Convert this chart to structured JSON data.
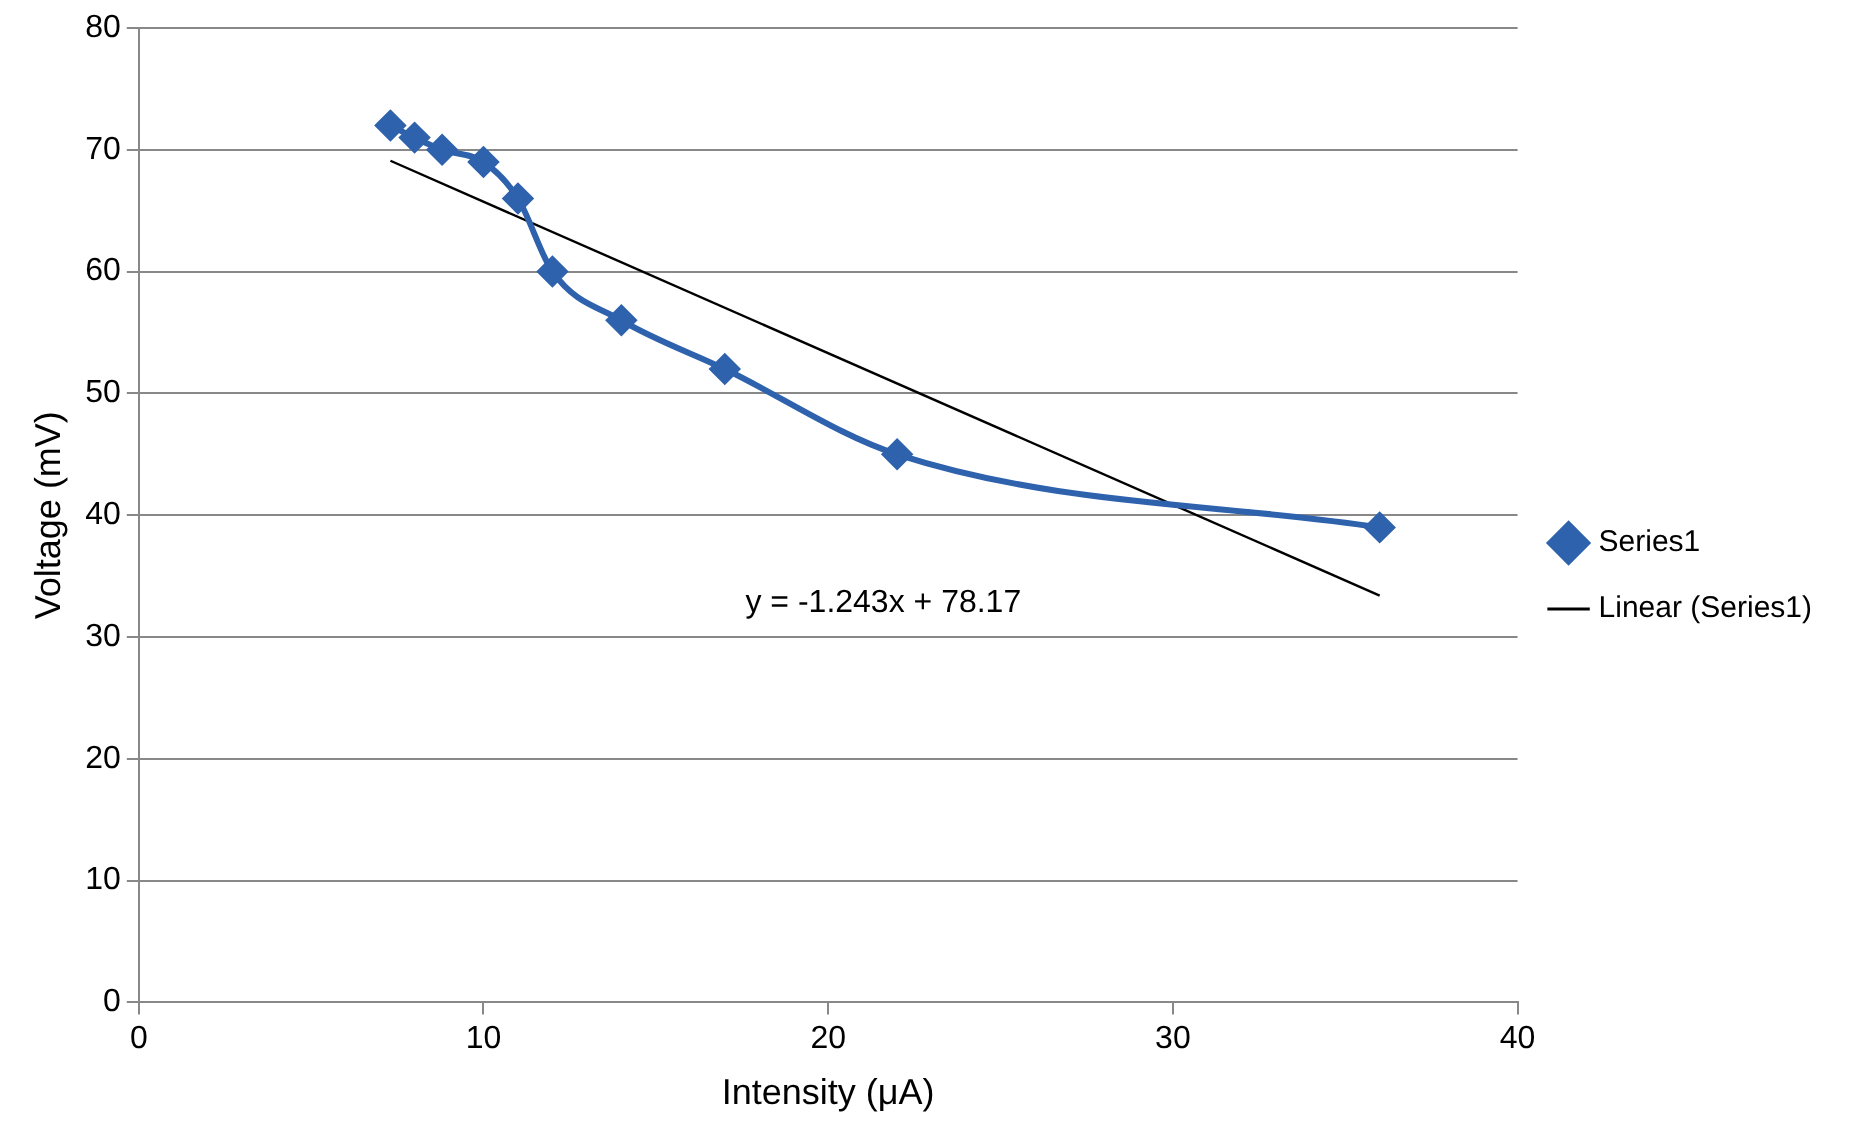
{
  "chart_data": {
    "type": "scatter",
    "xlabel": "Intensity (μA)",
    "ylabel": "Voltage (mV)",
    "xlim": [
      0,
      40
    ],
    "xticks": [
      0,
      10,
      20,
      30,
      40
    ],
    "ylim": [
      0,
      80
    ],
    "yticks": [
      0,
      10,
      20,
      30,
      40,
      50,
      60,
      70,
      80
    ],
    "grid": "y",
    "legend": "right",
    "marker": "diamond",
    "series": [
      {
        "name": "Series1",
        "type": "line",
        "color": "#2e62ad",
        "x": [
          7.3,
          8,
          8.8,
          10,
          11,
          12,
          14,
          17,
          22,
          36
        ],
        "values": [
          72,
          71,
          70,
          69,
          66,
          60,
          56,
          52,
          45,
          39
        ]
      },
      {
        "name": "Linear (Series1)",
        "type": "line",
        "color": "#000000",
        "marker": "none",
        "x": [
          7.3,
          36
        ],
        "values": [
          69.1,
          33.4
        ]
      }
    ],
    "annotations": [
      "y = -1.243x + 78.17"
    ]
  }
}
